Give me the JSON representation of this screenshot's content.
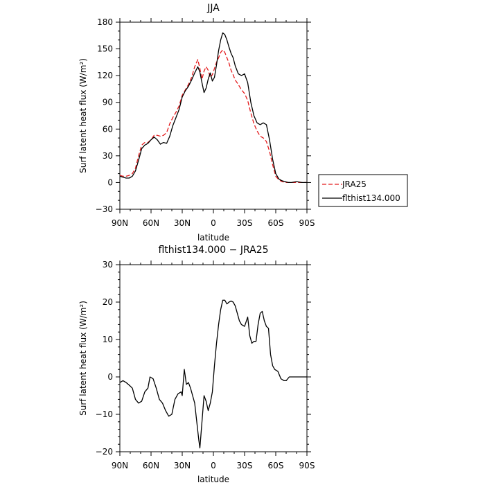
{
  "chart_data": [
    {
      "type": "line",
      "title": "JJA",
      "xlabel": "latitude",
      "ylabel": "Surf latent heat flux (W/m²)",
      "x_axis": {
        "direction": "north-to-south",
        "ticks": [
          90,
          60,
          30,
          0,
          -30,
          -60,
          -90
        ],
        "tick_labels": [
          "90N",
          "60N",
          "30N",
          "0",
          "30S",
          "60S",
          "90S"
        ]
      },
      "ylim": [
        -30,
        180
      ],
      "yticks": [
        -30,
        0,
        30,
        60,
        90,
        120,
        150,
        180
      ],
      "grid": false,
      "legend": {
        "placement": "right",
        "entries": [
          "JRA25",
          "flthist134.000"
        ]
      },
      "series": [
        {
          "name": "JRA25",
          "color": "#e41a1c",
          "dash": "dashed",
          "points": [
            [
              90,
              8
            ],
            [
              87,
              7
            ],
            [
              84,
              7
            ],
            [
              81,
              8
            ],
            [
              78,
              10
            ],
            [
              75,
              16
            ],
            [
              72,
              30
            ],
            [
              69,
              42
            ],
            [
              66,
              45
            ],
            [
              63,
              45
            ],
            [
              60,
              48
            ],
            [
              57,
              53
            ],
            [
              54,
              53
            ],
            [
              51,
              52
            ],
            [
              48,
              53
            ],
            [
              45,
              56
            ],
            [
              42,
              66
            ],
            [
              39,
              73
            ],
            [
              36,
              79
            ],
            [
              33,
              86
            ],
            [
              30,
              98
            ],
            [
              27,
              104
            ],
            [
              24,
              110
            ],
            [
              21,
              118
            ],
            [
              18,
              130
            ],
            [
              15,
              138
            ],
            [
              13,
              128
            ],
            [
              11,
              116
            ],
            [
              9,
              125
            ],
            [
              7,
              130
            ],
            [
              5,
              126
            ],
            [
              3,
              118
            ],
            [
              1,
              121
            ],
            [
              -1,
              128
            ],
            [
              -3,
              135
            ],
            [
              -5,
              140
            ],
            [
              -7,
              146
            ],
            [
              -9,
              149
            ],
            [
              -11,
              146
            ],
            [
              -13,
              140
            ],
            [
              -15,
              134
            ],
            [
              -17,
              126
            ],
            [
              -19,
              121
            ],
            [
              -21,
              115
            ],
            [
              -24,
              110
            ],
            [
              -27,
              104
            ],
            [
              -30,
              100
            ],
            [
              -33,
              92
            ],
            [
              -36,
              78
            ],
            [
              -39,
              66
            ],
            [
              -42,
              58
            ],
            [
              -45,
              52
            ],
            [
              -48,
              50
            ],
            [
              -51,
              46
            ],
            [
              -54,
              35
            ],
            [
              -57,
              20
            ],
            [
              -60,
              7
            ],
            [
              -63,
              3
            ],
            [
              -66,
              1
            ],
            [
              -69,
              0
            ],
            [
              -72,
              0
            ],
            [
              -75,
              0
            ],
            [
              -80,
              0
            ],
            [
              -85,
              0
            ],
            [
              -90,
              0
            ]
          ]
        },
        {
          "name": "flthist134.000",
          "color": "#000000",
          "dash": "solid",
          "points": [
            [
              90,
              7
            ],
            [
              87,
              6
            ],
            [
              84,
              5
            ],
            [
              81,
              5
            ],
            [
              78,
              7
            ],
            [
              75,
              13
            ],
            [
              72,
              25
            ],
            [
              69,
              38
            ],
            [
              66,
              42
            ],
            [
              63,
              44
            ],
            [
              60,
              48
            ],
            [
              57,
              51
            ],
            [
              54,
              48
            ],
            [
              51,
              43
            ],
            [
              48,
              45
            ],
            [
              45,
              44
            ],
            [
              42,
              52
            ],
            [
              39,
              64
            ],
            [
              36,
              73
            ],
            [
              33,
              82
            ],
            [
              30,
              96
            ],
            [
              27,
              103
            ],
            [
              24,
              108
            ],
            [
              21,
              115
            ],
            [
              18,
              123
            ],
            [
              15,
              130
            ],
            [
              13,
              124
            ],
            [
              11,
              112
            ],
            [
              9,
              101
            ],
            [
              7,
              106
            ],
            [
              5,
              116
            ],
            [
              3,
              123
            ],
            [
              1,
              114
            ],
            [
              -1,
              118
            ],
            [
              -3,
              132
            ],
            [
              -5,
              148
            ],
            [
              -7,
              160
            ],
            [
              -9,
              168
            ],
            [
              -11,
              166
            ],
            [
              -13,
              160
            ],
            [
              -15,
              152
            ],
            [
              -17,
              145
            ],
            [
              -19,
              140
            ],
            [
              -21,
              131
            ],
            [
              -24,
              122
            ],
            [
              -27,
              120
            ],
            [
              -30,
              122
            ],
            [
              -33,
              112
            ],
            [
              -36,
              90
            ],
            [
              -39,
              75
            ],
            [
              -42,
              67
            ],
            [
              -45,
              65
            ],
            [
              -48,
              67
            ],
            [
              -51,
              65
            ],
            [
              -54,
              48
            ],
            [
              -57,
              26
            ],
            [
              -60,
              10
            ],
            [
              -63,
              4
            ],
            [
              -66,
              2
            ],
            [
              -69,
              1
            ],
            [
              -72,
              0
            ],
            [
              -75,
              0
            ],
            [
              -80,
              1
            ],
            [
              -85,
              0
            ],
            [
              -90,
              0
            ]
          ]
        }
      ]
    },
    {
      "type": "line",
      "title": "flthist134.000 − JRA25",
      "xlabel": "latitude",
      "ylabel": "Surf latent heat flux (W/m²)",
      "x_axis": {
        "direction": "north-to-south",
        "ticks": [
          90,
          60,
          30,
          0,
          -30,
          -60,
          -90
        ],
        "tick_labels": [
          "90N",
          "60N",
          "30N",
          "0",
          "30S",
          "60S",
          "90S"
        ]
      },
      "ylim": [
        -20,
        30
      ],
      "yticks": [
        -20,
        -10,
        0,
        10,
        20,
        30
      ],
      "grid": false,
      "series": [
        {
          "color": "#000000",
          "dash": "solid",
          "points": [
            [
              90,
              -1.5
            ],
            [
              87,
              -1
            ],
            [
              84,
              -1.5
            ],
            [
              81,
              -2.2
            ],
            [
              78,
              -3
            ],
            [
              75,
              -6
            ],
            [
              72,
              -7
            ],
            [
              69,
              -6.5
            ],
            [
              66,
              -4
            ],
            [
              63,
              -3
            ],
            [
              61,
              0
            ],
            [
              58,
              -0.5
            ],
            [
              55,
              -3
            ],
            [
              52,
              -6
            ],
            [
              49,
              -7
            ],
            [
              46,
              -9
            ],
            [
              43,
              -10.5
            ],
            [
              40,
              -10
            ],
            [
              37,
              -6
            ],
            [
              34,
              -4.5
            ],
            [
              31,
              -4
            ],
            [
              30,
              -5
            ],
            [
              28,
              2
            ],
            [
              26,
              -2
            ],
            [
              24,
              -1.5
            ],
            [
              22,
              -3
            ],
            [
              20,
              -5
            ],
            [
              18,
              -7
            ],
            [
              16,
              -12
            ],
            [
              14,
              -17
            ],
            [
              13,
              -19
            ],
            [
              11,
              -12
            ],
            [
              9,
              -5
            ],
            [
              7,
              -6.5
            ],
            [
              5,
              -9
            ],
            [
              3,
              -7
            ],
            [
              1,
              -4
            ],
            [
              -1,
              3
            ],
            [
              -3,
              9
            ],
            [
              -5,
              14
            ],
            [
              -7,
              18
            ],
            [
              -9,
              20.5
            ],
            [
              -11,
              20.5
            ],
            [
              -13,
              19.5
            ],
            [
              -15,
              20
            ],
            [
              -17,
              20.3
            ],
            [
              -19,
              20
            ],
            [
              -21,
              19
            ],
            [
              -23,
              17
            ],
            [
              -25,
              15
            ],
            [
              -27,
              14
            ],
            [
              -30,
              13.5
            ],
            [
              -33,
              16
            ],
            [
              -35,
              11
            ],
            [
              -37,
              9
            ],
            [
              -39,
              9.5
            ],
            [
              -41,
              9.5
            ],
            [
              -43,
              14
            ],
            [
              -45,
              17
            ],
            [
              -47,
              17.5
            ],
            [
              -49,
              15
            ],
            [
              -51,
              13.5
            ],
            [
              -53,
              13
            ],
            [
              -55,
              6
            ],
            [
              -57,
              3
            ],
            [
              -59,
              2
            ],
            [
              -62,
              1.5
            ],
            [
              -65,
              -0.5
            ],
            [
              -68,
              -1
            ],
            [
              -70,
              -1
            ],
            [
              -73,
              0
            ],
            [
              -75,
              0
            ],
            [
              -80,
              0
            ],
            [
              -85,
              0
            ],
            [
              -90,
              0
            ]
          ]
        }
      ]
    }
  ]
}
